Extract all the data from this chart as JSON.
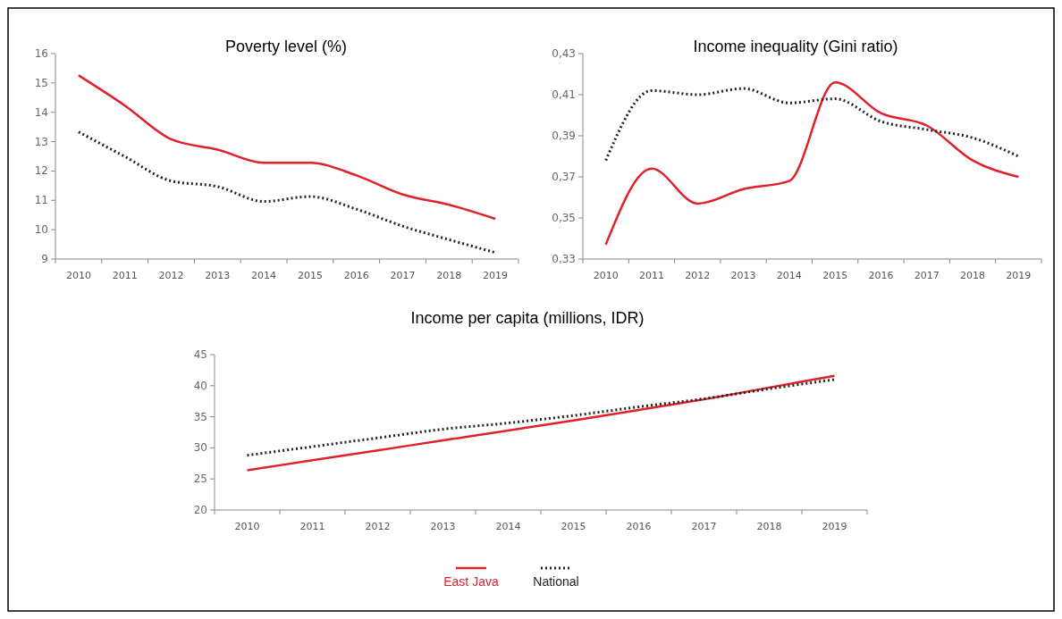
{
  "chart_data": [
    {
      "type": "line",
      "title": "Poverty level (%)",
      "categories": [
        "2010",
        "2011",
        "2012",
        "2013",
        "2014",
        "2015",
        "2016",
        "2017",
        "2018",
        "2019"
      ],
      "ylim": [
        9,
        16
      ],
      "yticks": [
        9,
        10,
        11,
        12,
        13,
        14,
        15,
        16
      ],
      "grid": false,
      "legend": false,
      "series": [
        {
          "color": "#e0202a",
          "line_style": "solid",
          "values": [
            15.26,
            14.23,
            13.08,
            12.73,
            12.28,
            12.28,
            11.85,
            11.2,
            10.85,
            10.37
          ]
        },
        {
          "color": "#222222",
          "line_style": "dotted",
          "values": [
            13.33,
            12.49,
            11.66,
            11.47,
            10.96,
            11.13,
            10.7,
            10.12,
            9.66,
            9.22
          ]
        }
      ]
    },
    {
      "type": "line",
      "title": "Income inequality (Gini ratio)",
      "categories": [
        "2010",
        "2011",
        "2012",
        "2013",
        "2014",
        "2015",
        "2016",
        "2017",
        "2018",
        "2019"
      ],
      "ylim": [
        0.33,
        0.43
      ],
      "yticks": [
        {
          "value": 0.33,
          "label": "0,33"
        },
        {
          "value": 0.35,
          "label": "0,35"
        },
        {
          "value": 0.37,
          "label": "0,37"
        },
        {
          "value": 0.39,
          "label": "0,39"
        },
        {
          "value": 0.41,
          "label": "0,41"
        },
        {
          "value": 0.43,
          "label": "0,43"
        }
      ],
      "grid": false,
      "legend": false,
      "series": [
        {
          "color": "#e0202a",
          "line_style": "solid",
          "values": [
            0.337,
            0.374,
            0.357,
            0.364,
            0.368,
            0.416,
            0.401,
            0.395,
            0.378,
            0.37
          ]
        },
        {
          "color": "#222222",
          "line_style": "dotted",
          "values": [
            0.378,
            0.412,
            0.41,
            0.413,
            0.406,
            0.408,
            0.397,
            0.393,
            0.389,
            0.38
          ]
        }
      ]
    },
    {
      "type": "line",
      "title": "Income per capita (millions, IDR)",
      "categories": [
        "2010",
        "2011",
        "2012",
        "2013",
        "2014",
        "2015",
        "2016",
        "2017",
        "2018",
        "2019"
      ],
      "ylim": [
        20,
        45
      ],
      "yticks": [
        20,
        25,
        30,
        35,
        40,
        45
      ],
      "grid": false,
      "legend": "bottom",
      "series": [
        {
          "name": "East Java",
          "color": "#e0202a",
          "line_style": "solid",
          "values": [
            26.4,
            28.0,
            29.6,
            31.2,
            32.8,
            34.4,
            36.1,
            37.8,
            39.7,
            41.6
          ]
        },
        {
          "name": "National",
          "color": "#222222",
          "line_style": "dotted",
          "values": [
            28.8,
            30.2,
            31.6,
            33.0,
            34.0,
            35.2,
            36.6,
            37.9,
            39.5,
            41.0
          ]
        }
      ]
    }
  ]
}
